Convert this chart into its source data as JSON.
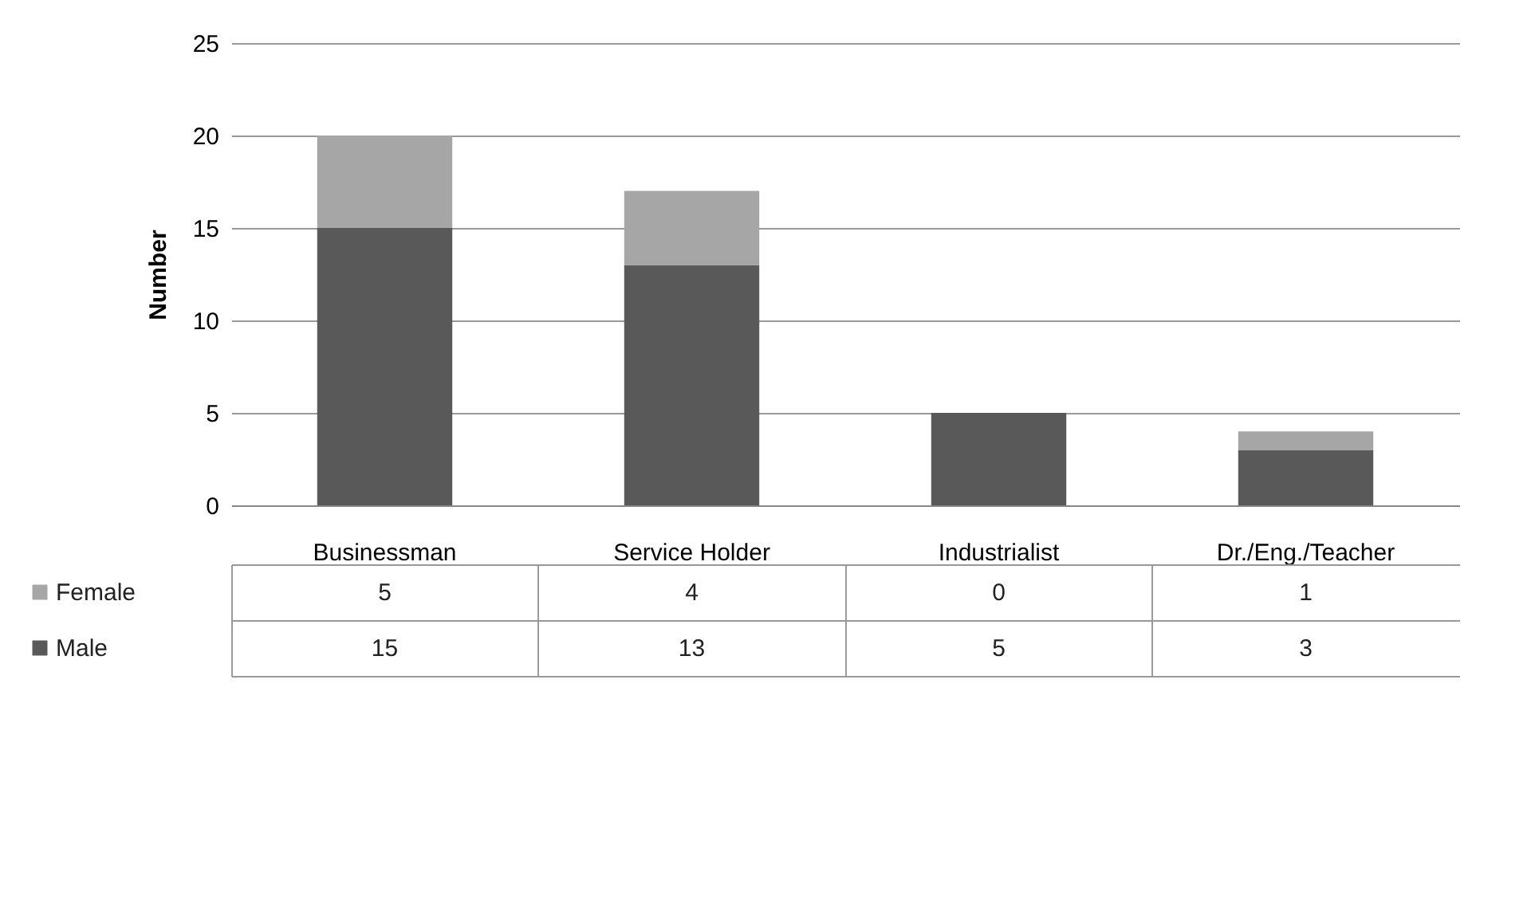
{
  "chart_data": {
    "type": "bar",
    "ylabel": "Number",
    "categories": [
      "Businessman",
      "Service Holder",
      "Industrialist",
      "Dr./Eng./Teacher"
    ],
    "series": [
      {
        "name": "Male",
        "color": "#595959",
        "values": [
          15,
          13,
          5,
          3
        ]
      },
      {
        "name": "Female",
        "color": "#a6a6a6",
        "values": [
          5,
          4,
          0,
          1
        ]
      }
    ],
    "stacked": true,
    "ylim": [
      0,
      25
    ],
    "yticks": [
      0,
      5,
      10,
      15,
      20,
      25
    ],
    "grid": "y",
    "legend": "bottom",
    "data_labels": true
  }
}
